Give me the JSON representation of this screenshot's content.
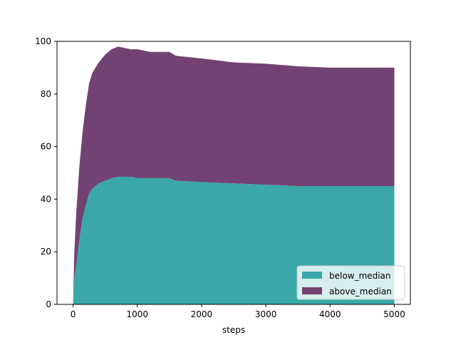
{
  "chart_data": {
    "type": "area",
    "stacked": true,
    "title": "",
    "xlabel": "steps",
    "ylabel": "",
    "xlim": [
      -250,
      5250
    ],
    "ylim": [
      0,
      100
    ],
    "x_ticks": [
      0,
      1000,
      2000,
      3000,
      4000,
      5000
    ],
    "y_ticks": [
      0,
      20,
      40,
      60,
      80,
      100
    ],
    "legend_position": "lower-right",
    "grid": false,
    "colors": {
      "below_median": "#3aa8a8",
      "above_median": "#724272"
    },
    "x": [
      0,
      20,
      50,
      100,
      150,
      200,
      250,
      300,
      400,
      500,
      600,
      700,
      800,
      900,
      1000,
      1200,
      1500,
      1600,
      2000,
      2500,
      3000,
      3500,
      4000,
      4500,
      5000
    ],
    "series": [
      {
        "name": "below_median",
        "values": [
          0,
          10,
          15,
          25,
          33,
          38,
          42,
          44,
          46,
          47,
          48,
          48.5,
          48.5,
          48.5,
          48,
          48,
          48,
          47,
          46.5,
          46,
          45.5,
          45,
          45,
          45,
          45
        ]
      },
      {
        "name": "above_median",
        "values": [
          0,
          10,
          20,
          28,
          33,
          38,
          42,
          44,
          46,
          48,
          49,
          49.5,
          49,
          48.5,
          49,
          48,
          48,
          47.5,
          47,
          46,
          46,
          45.5,
          45,
          45,
          45
        ]
      }
    ]
  }
}
